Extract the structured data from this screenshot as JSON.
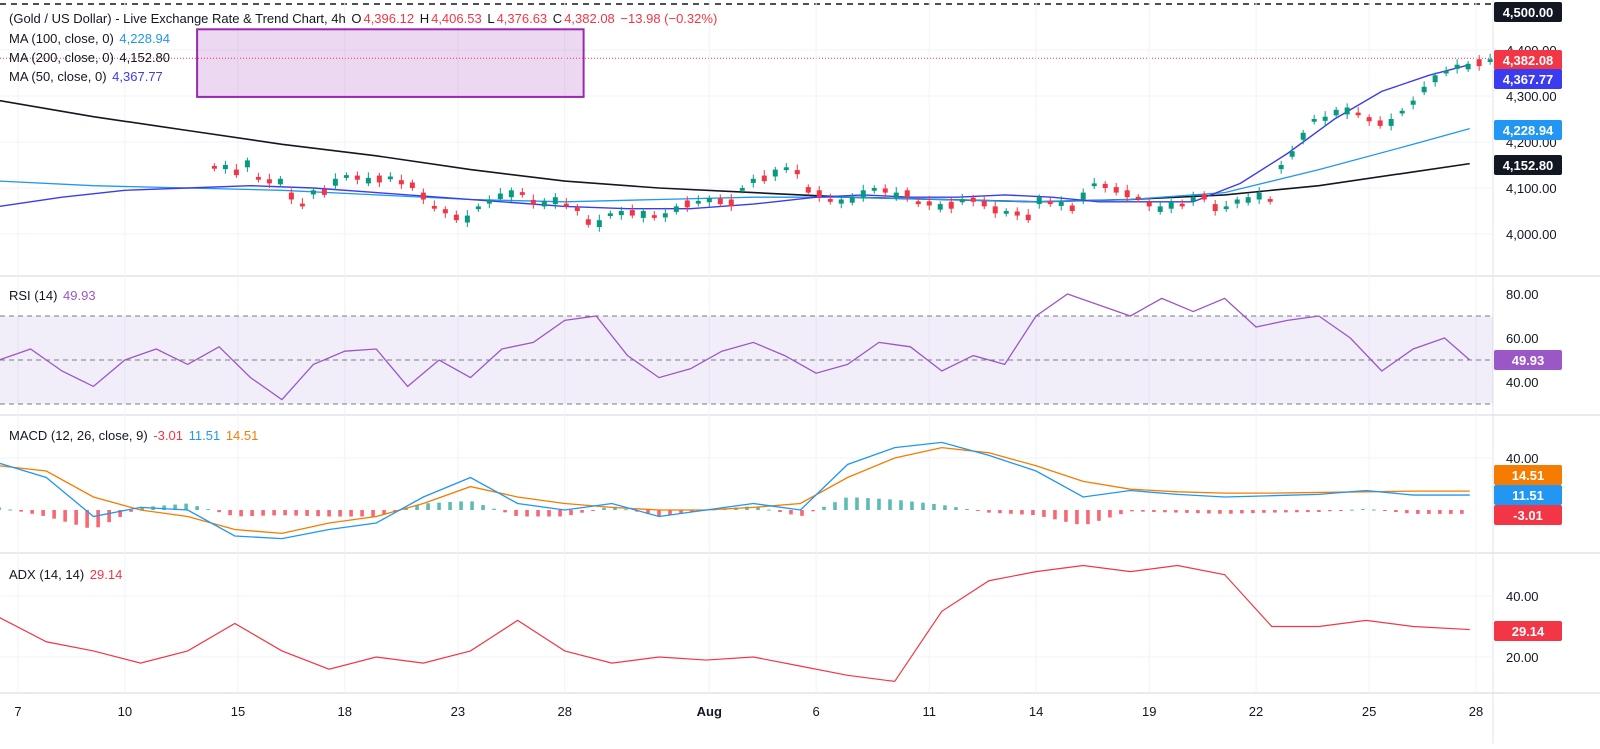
{
  "header": {
    "symbol": "(Gold / US Dollar) - Live Exchange Rate & Trend Chart, 4h",
    "o_label": "O",
    "o": "4,396.12",
    "h_label": "H",
    "h": "4,406.53",
    "l_label": "L",
    "l": "4,376.63",
    "c_label": "C",
    "c": "4,382.08",
    "change": "−13.98 (−0.32%)"
  },
  "ma_legend": [
    {
      "label": "MA (100, close, 0)",
      "value": "4,228.94",
      "color": "#2196f3"
    },
    {
      "label": "MA (200, close, 0)",
      "value": "4,152.80",
      "color": "#131722"
    },
    {
      "label": "MA (50, close, 0)",
      "value": "4,367.77",
      "color": "#3b3bf0"
    }
  ],
  "rsi_legend": {
    "label": "RSI (14)",
    "value": "49.93",
    "color": "#9c57c6"
  },
  "macd_legend": {
    "label": "MACD (12, 26, close, 9)",
    "hist": "-3.01",
    "macd": "11.51",
    "signal": "14.51",
    "hist_color": "#f23645",
    "macd_color": "#2196f3",
    "signal_color": "#f57c00"
  },
  "adx_legend": {
    "label": "ADX (14, 14)",
    "value": "29.14",
    "color": "#f23645"
  },
  "price_badges": [
    {
      "value": "4,500.00",
      "bg": "#131722",
      "fg": "#ffffff"
    },
    {
      "value": "4,382.08",
      "bg": "#f23645",
      "fg": "#ffffff"
    },
    {
      "value": "4,367.77",
      "bg": "#3b3bf0",
      "fg": "#ffffff"
    },
    {
      "value": "4,228.94",
      "bg": "#2196f3",
      "fg": "#ffffff"
    },
    {
      "value": "4,152.80",
      "bg": "#131722",
      "fg": "#ffffff"
    },
    {
      "value": "49.93",
      "bg": "#9c57c6",
      "fg": "#ffffff"
    },
    {
      "value": "14.51",
      "bg": "#f57c00",
      "fg": "#ffffff"
    },
    {
      "value": "11.51",
      "bg": "#2196f3",
      "fg": "#ffffff"
    },
    {
      "value": "-3.01",
      "bg": "#f23645",
      "fg": "#ffffff"
    },
    {
      "value": "29.14",
      "bg": "#f23645",
      "fg": "#ffffff"
    }
  ],
  "chart_data": [
    {
      "type": "candlestick",
      "ylim": [
        3930,
        4510
      ],
      "yticks": [
        "4,000.00",
        "4,100.00",
        "4,200.00",
        "4,300.00",
        "4,400.00"
      ],
      "ytick_values": [
        4000,
        4100,
        4200,
        4300,
        4400
      ],
      "dashed_level": 4500,
      "last_price": 4382.08,
      "consolidation_box": {
        "price_top": 4445,
        "price_bottom": 4298,
        "from_day": 6.3,
        "to_day": 18.6
      },
      "candles_day": [
        6.85,
        7.2,
        7.55,
        7.9,
        8.25,
        8.6,
        8.95,
        9.3,
        9.65,
        10.0,
        10.35,
        10.7,
        11.05,
        11.4,
        11.75,
        12.1,
        12.45,
        12.8,
        13.15,
        13.5,
        13.85,
        14.2,
        14.55,
        14.9,
        15.25,
        15.6,
        15.95,
        16.3,
        16.65,
        17.0,
        17.35,
        17.7,
        18.05,
        18.4,
        18.75,
        19.1,
        19.45,
        19.8,
        20.15,
        20.5,
        20.85,
        21.2,
        21.55,
        21.9,
        22.25,
        22.6,
        22.95,
        23.3,
        23.65,
        24.0,
        24.35,
        24.7,
        25.05,
        25.4,
        25.75,
        26.1,
        26.45,
        26.8,
        27.15,
        27.5,
        27.85,
        28.2,
        28.55,
        28.9,
        29.25,
        29.6,
        29.95,
        30.3,
        30.65,
        31.0,
        31.35,
        31.7,
        32.05,
        32.4,
        32.75,
        33.1,
        33.45,
        33.8,
        34.15,
        34.5,
        34.85,
        35.2,
        35.55,
        35.9,
        36.25,
        36.6,
        36.95,
        37.3,
        37.65,
        38.0,
        38.35,
        38.7,
        39.05,
        39.4,
        39.75,
        40.1,
        40.45,
        40.8,
        41.15,
        41.5,
        41.85,
        42.2,
        42.55,
        42.9,
        43.25,
        43.6,
        43.95,
        44.3,
        44.65,
        45.0,
        45.35,
        45.7,
        46.05,
        46.4,
        46.75,
        47.1,
        47.45,
        47.8,
        48.15,
        48.5,
        48.85
      ],
      "candles_close": [
        4142,
        4150,
        4128,
        4160,
        4118,
        4110,
        4120,
        4075,
        4060,
        4095,
        4085,
        4120,
        4128,
        4118,
        4122,
        4112,
        4125,
        4108,
        4100,
        4075,
        4055,
        4045,
        4030,
        4040,
        4060,
        4075,
        4088,
        4095,
        4085,
        4065,
        4072,
        4080,
        4060,
        4050,
        4020,
        4030,
        4045,
        4050,
        4040,
        4050,
        4035,
        4045,
        4060,
        4058,
        4072,
        4078,
        4065,
        4060,
        4100,
        4120,
        4115,
        4140,
        4145,
        4130,
        4090,
        4080,
        4070,
        4075,
        4080,
        4095,
        4100,
        4090,
        4090,
        4080,
        4065,
        4062,
        4065,
        4055,
        4075,
        4070,
        4060,
        4045,
        4050,
        4040,
        4030,
        4080,
        4065,
        4070,
        4050,
        4090,
        4110,
        4100,
        4090,
        4080,
        4075,
        4060,
        4060,
        4070,
        4060,
        4080,
        4075,
        4050,
        4060,
        4075,
        4080,
        4090,
        4070,
        4150,
        4180,
        4220,
        4250,
        4255,
        4270,
        4275,
        4258,
        4245,
        4235,
        4250,
        4268,
        4290,
        4320,
        4345,
        4355,
        4368,
        4370,
        4365,
        4380,
        4385,
        4382
      ],
      "candles_up": [
        0,
        1,
        0,
        1,
        0,
        0,
        1,
        0,
        0,
        1,
        0,
        1,
        1,
        0,
        1,
        0,
        1,
        0,
        0,
        0,
        0,
        0,
        0,
        1,
        1,
        1,
        1,
        1,
        0,
        0,
        1,
        1,
        0,
        0,
        0,
        1,
        1,
        1,
        0,
        1,
        0,
        1,
        1,
        0,
        1,
        1,
        0,
        0,
        1,
        1,
        0,
        1,
        1,
        0,
        0,
        0,
        0,
        1,
        1,
        1,
        1,
        0,
        1,
        0,
        0,
        0,
        1,
        0,
        1,
        0,
        0,
        0,
        1,
        0,
        0,
        1,
        0,
        1,
        0,
        1,
        1,
        0,
        0,
        0,
        0,
        0,
        1,
        1,
        0,
        1,
        0,
        0,
        1,
        1,
        1,
        1,
        0,
        1,
        1,
        1,
        1,
        1,
        1,
        1,
        0,
        0,
        0,
        1,
        1,
        1,
        1,
        1,
        1,
        1,
        1,
        0,
        1,
        1,
        0
      ]
    },
    {
      "type": "line",
      "name": "MA (50, close, 0)",
      "x": [
        0,
        2,
        4,
        6,
        8,
        10,
        12,
        14,
        16,
        18,
        20,
        22,
        24,
        26,
        27.5,
        29,
        30.5,
        32,
        33.5,
        35,
        36.5,
        38,
        39.5,
        41,
        42.5,
        44,
        45.5,
        46.8
      ],
      "y": [
        4060,
        4080,
        4095,
        4100,
        4105,
        4100,
        4090,
        4080,
        4070,
        4060,
        4055,
        4055,
        4065,
        4080,
        4085,
        4080,
        4080,
        4085,
        4080,
        4070,
        4070,
        4070,
        4110,
        4175,
        4250,
        4310,
        4345,
        4368
      ]
    },
    {
      "type": "line",
      "name": "MA (100, close, 0)",
      "x": [
        0,
        3,
        6,
        9,
        12,
        15,
        18,
        21,
        24,
        27,
        30,
        33,
        36,
        39,
        42,
        45,
        46.8
      ],
      "y": [
        4115,
        4105,
        4100,
        4095,
        4085,
        4075,
        4070,
        4075,
        4080,
        4080,
        4075,
        4070,
        4075,
        4090,
        4140,
        4195,
        4229
      ]
    },
    {
      "type": "line",
      "name": "MA (200, close, 0)",
      "x": [
        0,
        3,
        6,
        9,
        12,
        15,
        18,
        21,
        24,
        27,
        30,
        33,
        36,
        39,
        42,
        45,
        46.8
      ],
      "y": [
        4290,
        4255,
        4225,
        4195,
        4170,
        4140,
        4115,
        4100,
        4090,
        4080,
        4075,
        4070,
        4075,
        4085,
        4105,
        4135,
        4153
      ]
    },
    {
      "type": "line",
      "name": "RSI (14)",
      "ylim": [
        25,
        85
      ],
      "yticks": [
        "40.00",
        "60.00",
        "80.00"
      ],
      "ytick_values": [
        40,
        60,
        80
      ],
      "band": [
        30,
        70
      ],
      "midline": 50,
      "x": [
        0,
        1,
        2,
        3,
        4,
        5,
        6,
        7,
        8,
        9,
        10,
        11,
        12,
        13,
        14,
        15,
        16,
        17,
        18,
        19,
        20,
        21,
        22,
        23,
        24,
        25,
        26,
        27,
        28,
        29,
        30,
        31,
        32,
        33,
        34,
        35,
        36,
        37,
        38,
        39,
        40,
        41,
        42,
        43,
        44,
        45,
        46,
        46.8
      ],
      "y": [
        50,
        55,
        45,
        38,
        50,
        55,
        48,
        56,
        42,
        32,
        48,
        54,
        55,
        38,
        50,
        42,
        55,
        58,
        68,
        70,
        52,
        42,
        46,
        54,
        58,
        52,
        44,
        48,
        58,
        56,
        45,
        52,
        48,
        70,
        80,
        75,
        70,
        78,
        72,
        78,
        65,
        68,
        70,
        60,
        45,
        55,
        60,
        50
      ]
    },
    {
      "type": "bar_line",
      "name": "MACD (12, 26, close, 9)",
      "ylim": [
        -45,
        60
      ],
      "yticks": [
        "40.00"
      ],
      "ytick_values": [
        40
      ],
      "x": [
        0,
        1.5,
        3,
        4.5,
        6,
        7.5,
        9,
        10.5,
        12,
        13.5,
        15,
        16.5,
        18,
        19.5,
        21,
        22.5,
        24,
        25.5,
        27,
        28.5,
        30,
        31.5,
        33,
        34.5,
        36,
        37.5,
        39,
        40.5,
        42,
        43.5,
        45,
        46.8
      ],
      "macd": [
        36,
        25,
        -5,
        2,
        0,
        -20,
        -22,
        -15,
        -10,
        10,
        25,
        5,
        0,
        5,
        -5,
        0,
        5,
        0,
        35,
        48,
        52,
        42,
        30,
        10,
        15,
        12,
        10,
        11,
        12,
        15,
        11.5,
        11.5
      ],
      "signal": [
        34,
        30,
        10,
        0,
        -5,
        -15,
        -18,
        -10,
        -5,
        5,
        18,
        10,
        5,
        2,
        0,
        0,
        2,
        5,
        25,
        40,
        48,
        44,
        34,
        22,
        16,
        14,
        13,
        13,
        13.5,
        14,
        14.5,
        14.5
      ],
      "hist": [
        2,
        -5,
        -15,
        2,
        5,
        -5,
        -4,
        -5,
        -5,
        5,
        7,
        -5,
        -5,
        3,
        -5,
        0,
        3,
        -5,
        10,
        8,
        4,
        -2,
        -4,
        -12,
        -1,
        -2,
        -3,
        -2,
        -1.5,
        1,
        -3,
        -3
      ]
    },
    {
      "type": "line",
      "name": "ADX (14, 14)",
      "ylim": [
        5,
        55
      ],
      "yticks": [
        "20.00",
        "40.00"
      ],
      "ytick_values": [
        20,
        40
      ],
      "x": [
        0,
        1.5,
        3,
        4.5,
        6,
        7.5,
        9,
        10.5,
        12,
        13.5,
        15,
        16.5,
        18,
        19.5,
        21,
        22.5,
        24,
        25.5,
        27,
        28.5,
        30,
        31.5,
        33,
        34.5,
        36,
        37.5,
        39,
        40.5,
        42,
        43.5,
        45,
        46.8
      ],
      "y": [
        33,
        25,
        22,
        18,
        22,
        31,
        22,
        16,
        20,
        18,
        22,
        32,
        22,
        18,
        20,
        19,
        20,
        17,
        14,
        12,
        35,
        45,
        48,
        50,
        48,
        50,
        47,
        30,
        30,
        32,
        30,
        29
      ]
    }
  ],
  "x_axis": {
    "labels": [
      "7",
      "10",
      "15",
      "18",
      "23",
      "28",
      "Aug",
      "6",
      "11",
      "14",
      "19",
      "22",
      "25",
      "28"
    ],
    "label_days": [
      0.6,
      4,
      7.6,
      11,
      14.6,
      18,
      22.6,
      26,
      29.6,
      33,
      36.6,
      40,
      43.6,
      47
    ]
  }
}
